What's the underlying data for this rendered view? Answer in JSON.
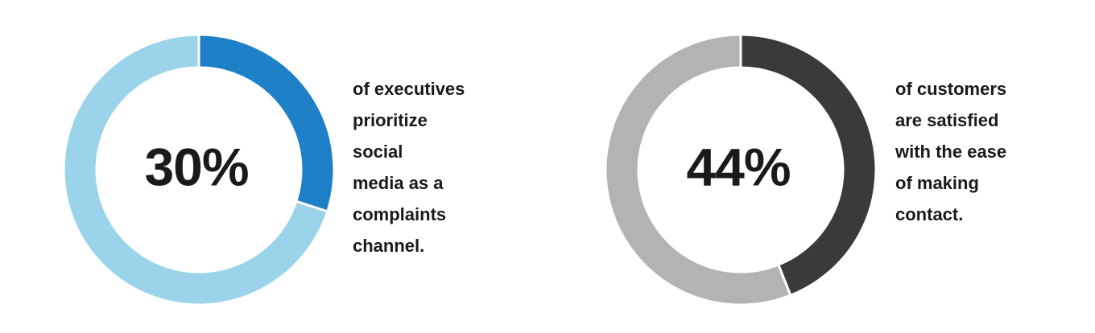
{
  "chart_data": [
    {
      "type": "donut",
      "values": [
        30,
        70
      ],
      "value_labels": [
        "30%",
        null
      ],
      "colors": [
        "#1e80c6",
        "#9bd4ea"
      ],
      "caption": [
        "of executives",
        "prioritize",
        "social",
        "media as a",
        "complaints",
        "channel."
      ]
    },
    {
      "type": "donut",
      "values": [
        44,
        56
      ],
      "value_labels": [
        "44%",
        null
      ],
      "colors": [
        "#3a3a3a",
        "#b3b3b3"
      ],
      "caption": [
        "of customers",
        "are satisfied",
        "with the ease",
        "of making",
        "contact."
      ]
    }
  ]
}
